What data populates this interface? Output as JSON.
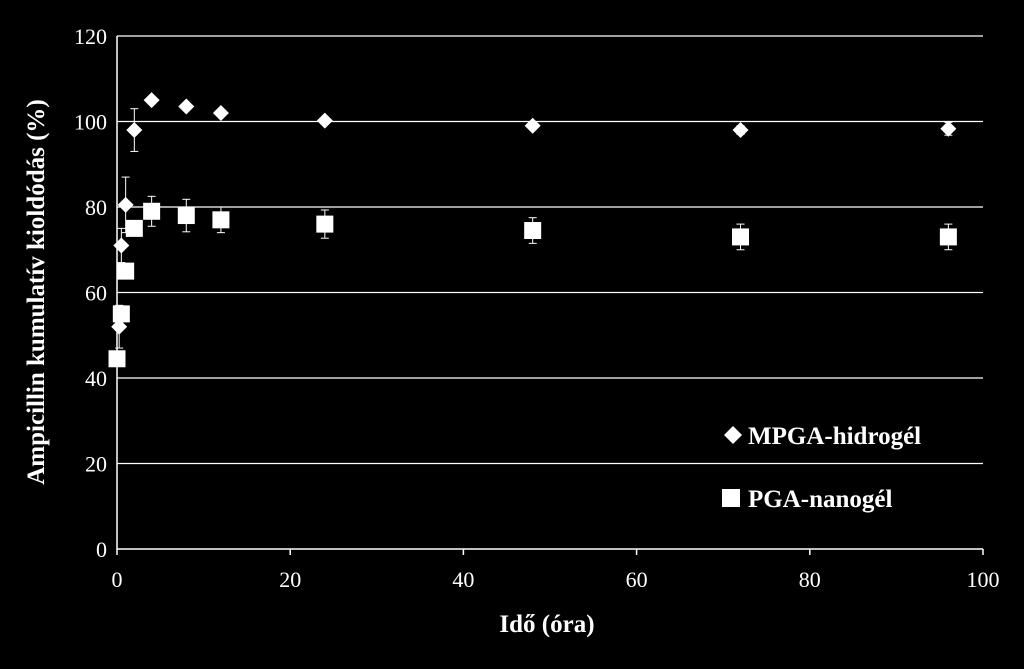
{
  "chart_data": {
    "type": "scatter",
    "title": "",
    "xlabel": "Idő (óra)",
    "ylabel": "Ampicillin kumulatív kioldódás (%)",
    "xlim": [
      0,
      100
    ],
    "ylim": [
      0,
      120
    ],
    "xticks": [
      0,
      20,
      40,
      60,
      80,
      100
    ],
    "yticks": [
      0,
      20,
      40,
      60,
      80,
      100,
      120
    ],
    "grid": "horizontal",
    "legend_position": "bottom-right",
    "colors": {
      "background": "#000000",
      "foreground": "#ffffff"
    },
    "series": [
      {
        "name": "MPGA-hidrogél",
        "marker": "diamond",
        "x": [
          0.25,
          0.5,
          1,
          2,
          4,
          8,
          12,
          24,
          48,
          72,
          96
        ],
        "y": [
          52,
          71,
          80.5,
          98,
          105,
          103.5,
          102,
          100.2,
          99,
          98,
          98.3
        ],
        "error": [
          5,
          4,
          6.5,
          5,
          0.5,
          0.5,
          0.5,
          0.5,
          0.5,
          1,
          1.5
        ]
      },
      {
        "name": "PGA-nanogél",
        "marker": "square",
        "x": [
          0,
          0.5,
          1,
          2,
          4,
          8,
          12,
          24,
          48,
          72,
          96
        ],
        "y": [
          44.5,
          55,
          65,
          75,
          79,
          78,
          77,
          76,
          74.5,
          73,
          73
        ],
        "error": [
          0,
          0,
          1.5,
          1.5,
          3.5,
          3.8,
          3,
          3.3,
          3,
          3,
          3
        ]
      }
    ]
  }
}
